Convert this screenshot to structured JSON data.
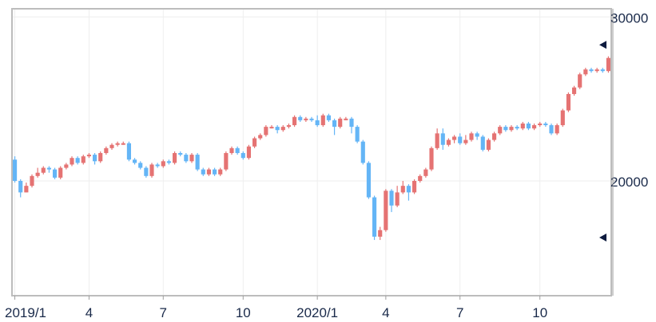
{
  "chart_data": {
    "type": "candlestick",
    "title": "",
    "xlabel": "",
    "ylabel": "",
    "ylim": [
      13000,
      30500
    ],
    "y_ticks": [
      20000,
      30000
    ],
    "x_ticks": [
      {
        "label": "2019/1",
        "week": 0
      },
      {
        "label": "4",
        "week": 13
      },
      {
        "label": "7",
        "week": 26
      },
      {
        "label": "10",
        "week": 40
      },
      {
        "label": "2020/1",
        "week": 53
      },
      {
        "label": "4",
        "week": 65
      },
      {
        "label": "7",
        "week": 78
      },
      {
        "label": "10",
        "week": 92
      }
    ],
    "grid": true,
    "colors": {
      "up": "#e57373",
      "down": "#64b5f6",
      "grid": "#eeeeee",
      "frame": "#bdbdbd",
      "axis_text": "#1a2a4a",
      "marker": "#0d1b3e"
    },
    "markers": [
      {
        "value": 28300,
        "shape": "left-triangle"
      },
      {
        "value": 16550,
        "shape": "left-triangle"
      }
    ],
    "candles": [
      [
        21300,
        20000,
        21500,
        19900
      ],
      [
        20000,
        19300,
        20100,
        19000
      ],
      [
        19300,
        19700,
        19900,
        19300
      ],
      [
        19700,
        20300,
        20400,
        19600
      ],
      [
        20300,
        20500,
        20800,
        20200
      ],
      [
        20500,
        20800,
        20900,
        20400
      ],
      [
        20800,
        20700,
        20900,
        20500
      ],
      [
        20700,
        20200,
        20800,
        20100
      ],
      [
        20200,
        20800,
        20900,
        20100
      ],
      [
        20800,
        21000,
        21100,
        20700
      ],
      [
        21000,
        21400,
        21500,
        20900
      ],
      [
        21400,
        21100,
        21500,
        21000
      ],
      [
        21100,
        21500,
        21600,
        21000
      ],
      [
        21500,
        21600,
        21700,
        21400
      ],
      [
        21600,
        21200,
        21700,
        21000
      ],
      [
        21200,
        21700,
        21800,
        21100
      ],
      [
        21700,
        22000,
        22100,
        21600
      ],
      [
        22000,
        22200,
        22300,
        21900
      ],
      [
        22200,
        22300,
        22400,
        22100
      ],
      [
        22300,
        22300,
        22400,
        22200
      ],
      [
        22300,
        21300,
        22400,
        21200
      ],
      [
        21300,
        21100,
        21400,
        21000
      ],
      [
        21100,
        20800,
        21200,
        20700
      ],
      [
        20800,
        20300,
        20900,
        20200
      ],
      [
        20300,
        21000,
        21100,
        20200
      ],
      [
        21000,
        20900,
        21100,
        20800
      ],
      [
        20900,
        21200,
        21300,
        20800
      ],
      [
        21200,
        21100,
        21300,
        21000
      ],
      [
        21100,
        21700,
        21800,
        21000
      ],
      [
        21700,
        21600,
        21800,
        21500
      ],
      [
        21600,
        21200,
        21700,
        21100
      ],
      [
        21200,
        21600,
        21700,
        21100
      ],
      [
        21600,
        20700,
        21700,
        20600
      ],
      [
        20700,
        20400,
        20800,
        20300
      ],
      [
        20400,
        20700,
        20800,
        20300
      ],
      [
        20700,
        20400,
        20800,
        20300
      ],
      [
        20400,
        20700,
        20800,
        20300
      ],
      [
        20700,
        21700,
        21800,
        20600
      ],
      [
        21700,
        22000,
        22100,
        21600
      ],
      [
        22000,
        21700,
        22100,
        21600
      ],
      [
        21700,
        21400,
        21800,
        21300
      ],
      [
        21400,
        22100,
        22200,
        21300
      ],
      [
        22100,
        22600,
        22700,
        22000
      ],
      [
        22600,
        22800,
        22900,
        22500
      ],
      [
        22800,
        23300,
        23400,
        22700
      ],
      [
        23300,
        23300,
        23400,
        23200
      ],
      [
        23300,
        23100,
        23400,
        22900
      ],
      [
        23100,
        23300,
        23400,
        23000
      ],
      [
        23300,
        23400,
        23500,
        23200
      ],
      [
        23400,
        23900,
        24000,
        23300
      ],
      [
        23900,
        23700,
        24000,
        23600
      ],
      [
        23700,
        23800,
        23900,
        23600
      ],
      [
        23800,
        23700,
        23900,
        23600
      ],
      [
        23700,
        23400,
        24000,
        23300
      ],
      [
        23400,
        24000,
        24100,
        23300
      ],
      [
        24000,
        23700,
        24100,
        23600
      ],
      [
        23700,
        23300,
        23800,
        22800
      ],
      [
        23300,
        23800,
        23900,
        23200
      ],
      [
        23800,
        23800,
        23900,
        23700
      ],
      [
        23800,
        23300,
        23900,
        22900
      ],
      [
        23300,
        22400,
        23400,
        22300
      ],
      [
        22400,
        21100,
        22500,
        21000
      ],
      [
        21100,
        19000,
        21200,
        18900
      ],
      [
        19000,
        16600,
        19100,
        16400
      ],
      [
        16600,
        17000,
        17200,
        16400
      ],
      [
        17000,
        19400,
        19500,
        16900
      ],
      [
        19400,
        18500,
        19500,
        18100
      ],
      [
        18500,
        19300,
        19700,
        18400
      ],
      [
        19300,
        19700,
        20000,
        19200
      ],
      [
        19700,
        19300,
        19800,
        18800
      ],
      [
        19300,
        20000,
        20100,
        19200
      ],
      [
        20000,
        20300,
        20400,
        19900
      ],
      [
        20300,
        20700,
        20800,
        20200
      ],
      [
        20700,
        22000,
        22100,
        20600
      ],
      [
        22000,
        22900,
        23200,
        21900
      ],
      [
        22900,
        22200,
        23200,
        21900
      ],
      [
        22200,
        22500,
        22600,
        22100
      ],
      [
        22500,
        22700,
        22800,
        22300
      ],
      [
        22700,
        22300,
        22900,
        22200
      ],
      [
        22300,
        22500,
        22800,
        22200
      ],
      [
        22500,
        22900,
        23000,
        22400
      ],
      [
        22900,
        22700,
        23000,
        22500
      ],
      [
        22700,
        21900,
        22800,
        21800
      ],
      [
        21900,
        22500,
        22600,
        21800
      ],
      [
        22500,
        22900,
        23000,
        22400
      ],
      [
        22900,
        23300,
        23400,
        22800
      ],
      [
        23300,
        23100,
        23400,
        23000
      ],
      [
        23100,
        23300,
        23400,
        23000
      ],
      [
        23300,
        23200,
        23400,
        23100
      ],
      [
        23200,
        23500,
        23600,
        23100
      ],
      [
        23500,
        23200,
        23600,
        23100
      ],
      [
        23200,
        23400,
        23500,
        23100
      ],
      [
        23400,
        23500,
        23600,
        23300
      ],
      [
        23500,
        23400,
        23600,
        23300
      ],
      [
        23400,
        22900,
        23500,
        22800
      ],
      [
        22900,
        23400,
        23500,
        22800
      ],
      [
        23400,
        24300,
        24400,
        23300
      ],
      [
        24300,
        25300,
        25400,
        24200
      ],
      [
        25300,
        25700,
        25800,
        25200
      ],
      [
        25700,
        26500,
        26600,
        25600
      ],
      [
        26500,
        26800,
        26900,
        26400
      ],
      [
        26800,
        26700,
        26900,
        26600
      ],
      [
        26700,
        26800,
        26900,
        26600
      ],
      [
        26800,
        26700,
        26900,
        26600
      ],
      [
        26700,
        27500,
        27600,
        26600
      ]
    ]
  }
}
